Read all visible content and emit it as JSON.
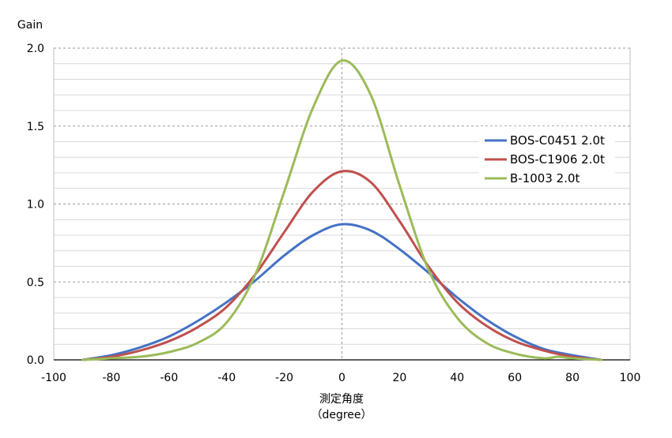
{
  "chart_data": {
    "type": "line",
    "title": "",
    "ylabel": "Gain",
    "xlabel_line1": "測定角度",
    "xlabel_line2": "（degree）",
    "xlim": [
      -100,
      100
    ],
    "ylim": [
      0,
      2.0
    ],
    "xticks": [
      "-100",
      "-80",
      "-60",
      "-40",
      "-20",
      "0",
      "20",
      "40",
      "60",
      "80",
      "100"
    ],
    "yticks": [
      "0.0",
      "0.5",
      "1.0",
      "1.5",
      "2.0"
    ],
    "grid": "horizontal dashed at major ticks, light solid minor lines; dashed vertical at x=0",
    "legend_position": "right",
    "series": [
      {
        "name": "BOS-C0451 2.0t",
        "color": "#4472C4",
        "points": [
          [
            -90,
            0.0
          ],
          [
            -80,
            0.03
          ],
          [
            -70,
            0.08
          ],
          [
            -60,
            0.15
          ],
          [
            -50,
            0.25
          ],
          [
            -40,
            0.37
          ],
          [
            -30,
            0.51
          ],
          [
            -20,
            0.67
          ],
          [
            -10,
            0.8
          ],
          [
            0,
            0.87
          ],
          [
            10,
            0.83
          ],
          [
            20,
            0.71
          ],
          [
            30,
            0.56
          ],
          [
            40,
            0.4
          ],
          [
            50,
            0.26
          ],
          [
            60,
            0.15
          ],
          [
            70,
            0.07
          ],
          [
            80,
            0.03
          ],
          [
            90,
            0.0
          ]
        ]
      },
      {
        "name": "BOS-C1906 2.0t",
        "color": "#C0504D",
        "points": [
          [
            -90,
            0.0
          ],
          [
            -80,
            0.02
          ],
          [
            -70,
            0.06
          ],
          [
            -60,
            0.12
          ],
          [
            -50,
            0.21
          ],
          [
            -40,
            0.34
          ],
          [
            -30,
            0.55
          ],
          [
            -20,
            0.82
          ],
          [
            -10,
            1.08
          ],
          [
            0,
            1.21
          ],
          [
            10,
            1.14
          ],
          [
            20,
            0.89
          ],
          [
            30,
            0.6
          ],
          [
            40,
            0.37
          ],
          [
            50,
            0.22
          ],
          [
            60,
            0.12
          ],
          [
            70,
            0.06
          ],
          [
            80,
            0.02
          ],
          [
            90,
            0.0
          ]
        ]
      },
      {
        "name": "B-1003 2.0t",
        "color": "#9BBB59",
        "points": [
          [
            -90,
            0.0
          ],
          [
            -80,
            0.01
          ],
          [
            -70,
            0.02
          ],
          [
            -60,
            0.05
          ],
          [
            -50,
            0.11
          ],
          [
            -40,
            0.24
          ],
          [
            -30,
            0.55
          ],
          [
            -20,
            1.08
          ],
          [
            -10,
            1.62
          ],
          [
            0,
            1.92
          ],
          [
            10,
            1.7
          ],
          [
            20,
            1.12
          ],
          [
            30,
            0.58
          ],
          [
            40,
            0.27
          ],
          [
            50,
            0.11
          ],
          [
            60,
            0.04
          ],
          [
            70,
            0.01
          ],
          [
            75,
            0.02
          ],
          [
            80,
            0.01
          ],
          [
            90,
            0.0
          ]
        ]
      }
    ]
  }
}
